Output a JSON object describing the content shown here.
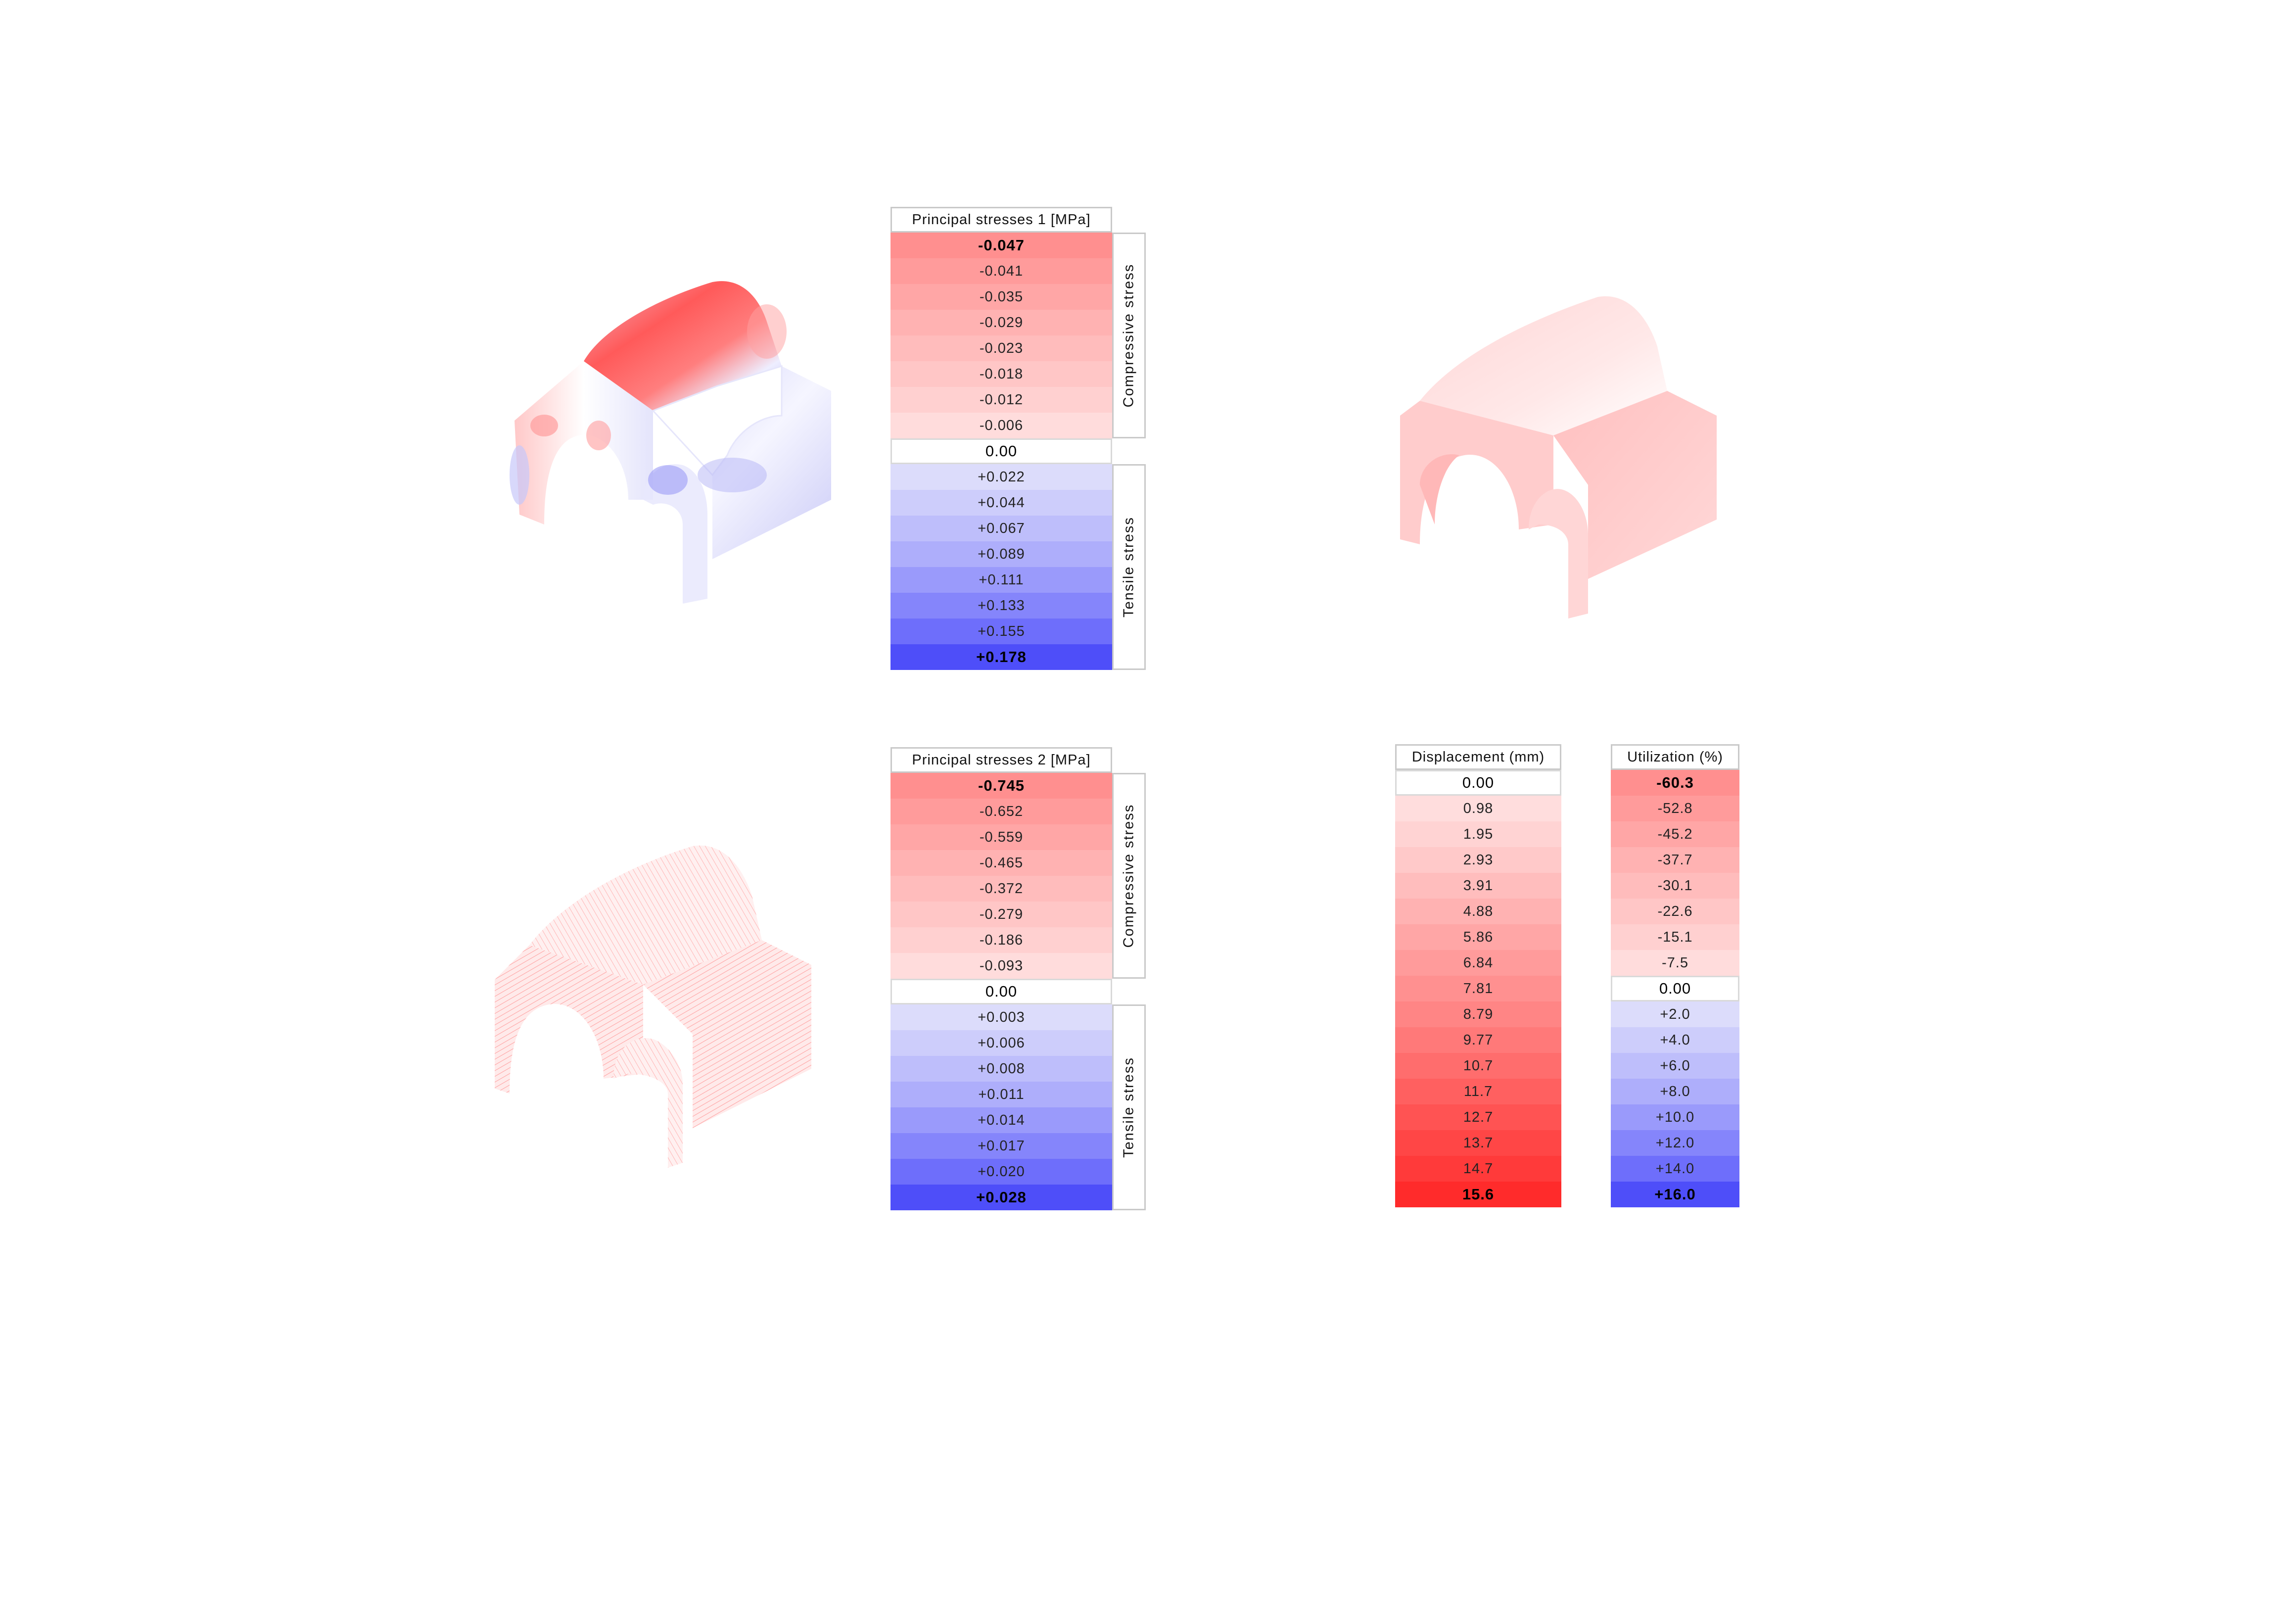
{
  "legends": {
    "ps1": {
      "title": "Principal  stresses  1  [MPa]",
      "cells": [
        "-0.047",
        "-0.041",
        "-0.035",
        "-0.029",
        "-0.023",
        "-0.018",
        "-0.012",
        "-0.006",
        "0.00",
        "+0.022",
        "+0.044",
        "+0.067",
        "+0.089",
        "+0.111",
        "+0.133",
        "+0.155",
        "+0.178"
      ],
      "compressive_label": "Compressive  stress",
      "tensile_label": "Tensile  stress"
    },
    "ps2": {
      "title": "Principal  stresses  2  [MPa]",
      "cells": [
        "-0.745",
        "-0.652",
        "-0.559",
        "-0.465",
        "-0.372",
        "-0.279",
        "-0.186",
        "-0.093",
        "0.00",
        "+0.003",
        "+0.006",
        "+0.008",
        "+0.011",
        "+0.014",
        "+0.017",
        "+0.020",
        "+0.028"
      ],
      "compressive_label": "Compressive  stress",
      "tensile_label": "Tensile  stress"
    },
    "disp": {
      "title": "Displacement  (mm)",
      "cells": [
        "0.00",
        "0.98",
        "1.95",
        "2.93",
        "3.91",
        "4.88",
        "5.86",
        "6.84",
        "7.81",
        "8.79",
        "9.77",
        "10.7",
        "11.7",
        "12.7",
        "13.7",
        "14.7",
        "15.6"
      ]
    },
    "util": {
      "title": "Utilization  (%)",
      "cells": [
        "-60.3",
        "-52.8",
        "-45.2",
        "-37.7",
        "-30.1",
        "-22.6",
        "-15.1",
        "-7.5",
        "0.00",
        "+2.0",
        "+4.0",
        "+6.0",
        "+8.0",
        "+10.0",
        "+12.0",
        "+14.0",
        "+16.0"
      ]
    }
  },
  "colors": {
    "compressive_scale": [
      "#ff8f8f",
      "#ff9b9b",
      "#ffa6a6",
      "#ffb2b2",
      "#ffbcbc",
      "#ffc6c6",
      "#ffd0d0",
      "#ffdcdc"
    ],
    "tensile_scale": [
      "#dcdcfb",
      "#cdcdfb",
      "#bebefb",
      "#aeaefb",
      "#9a9afb",
      "#8585fb",
      "#6e6efb",
      "#4e4ef9"
    ],
    "displacement_scale": [
      "#ffdddd",
      "#ffd3d3",
      "#ffc9c9",
      "#ffbdbd",
      "#ffb2b2",
      "#ffa6a6",
      "#ff9b9b",
      "#ff9090",
      "#ff8585",
      "#ff7979",
      "#ff6d6d",
      "#ff6060",
      "#ff5353",
      "#ff4646",
      "#ff3a3a",
      "#ff2b2b"
    ]
  }
}
